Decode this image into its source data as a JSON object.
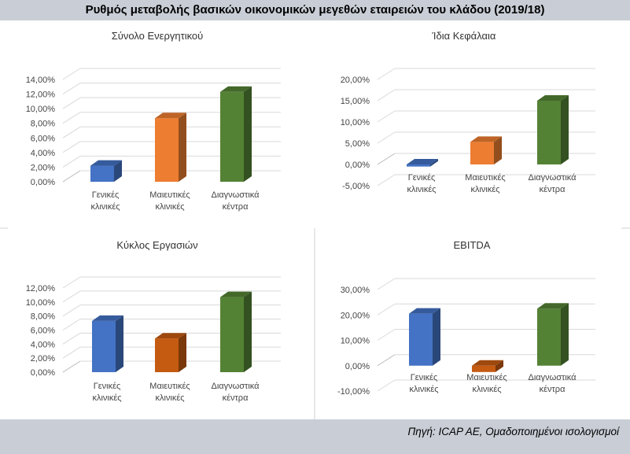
{
  "header": {
    "title": "Ρυθμός μεταβολής βασικών οικονομικών μεγεθών εταιρειών του κλάδου (2019/18)"
  },
  "footer": {
    "source": "Πηγή: ICAP AE, Ομαδοποιημένοι ισολογισμοί"
  },
  "chart_data": [
    {
      "type": "bar",
      "title": "Σύνολο Ενεργητικού",
      "categories": [
        [
          "Γενικές",
          "κλινικές"
        ],
        [
          "Μαιευτικές",
          "κλινικές"
        ],
        [
          "Διαγνωστικά",
          "κέντρα"
        ]
      ],
      "values": [
        2.2,
        8.7,
        12.3
      ],
      "ylim": [
        0,
        14
      ],
      "yticks": [
        "0,00%",
        "2,00%",
        "4,00%",
        "6,00%",
        "8,00%",
        "10,00%",
        "12,00%",
        "14,00%"
      ],
      "colors": [
        "#4472c4",
        "#ed7d31",
        "#548235"
      ],
      "grid": true
    },
    {
      "type": "bar",
      "title": "Ίδια Κεφάλαια",
      "categories": [
        [
          "Γενικές",
          "κλινικές"
        ],
        [
          "Μαιευτικές",
          "κλινικές"
        ],
        [
          "Διαγνωστικά",
          "κέντρα"
        ]
      ],
      "values": [
        -0.5,
        5.3,
        15.0
      ],
      "ylim": [
        -5,
        20
      ],
      "yticks": [
        "-5,00%",
        "0,00%",
        "5,00%",
        "10,00%",
        "15,00%",
        "20,00%"
      ],
      "colors": [
        "#4472c4",
        "#ed7d31",
        "#548235"
      ],
      "grid": true
    },
    {
      "type": "bar",
      "title": "Κύκλος Εργασιών",
      "categories": [
        [
          "Γενικές",
          "κλινικές"
        ],
        [
          "Μαιευτικές",
          "κλινικές"
        ],
        [
          "Διαγνωστικά",
          "κέντρα"
        ]
      ],
      "values": [
        7.3,
        4.8,
        10.7
      ],
      "ylim": [
        0,
        12
      ],
      "yticks": [
        "0,00%",
        "2,00%",
        "4,00%",
        "6,00%",
        "8,00%",
        "10,00%",
        "12,00%"
      ],
      "colors": [
        "#4472c4",
        "#c55a11",
        "#548235"
      ],
      "grid": true
    },
    {
      "type": "bar",
      "title": "EBITDA",
      "categories": [
        [
          "Γενικές",
          "κλινικές"
        ],
        [
          "Μαιευτικές",
          "κλινικές"
        ],
        [
          "Διαγνωστικά",
          "κέντρα"
        ]
      ],
      "values": [
        20.5,
        -2.5,
        22.5
      ],
      "ylim": [
        -10,
        30
      ],
      "yticks": [
        "-10,00%",
        "0,00%",
        "10,00%",
        "20,00%",
        "30,00%"
      ],
      "colors": [
        "#4472c4",
        "#c55a11",
        "#548235"
      ],
      "grid": true
    }
  ]
}
